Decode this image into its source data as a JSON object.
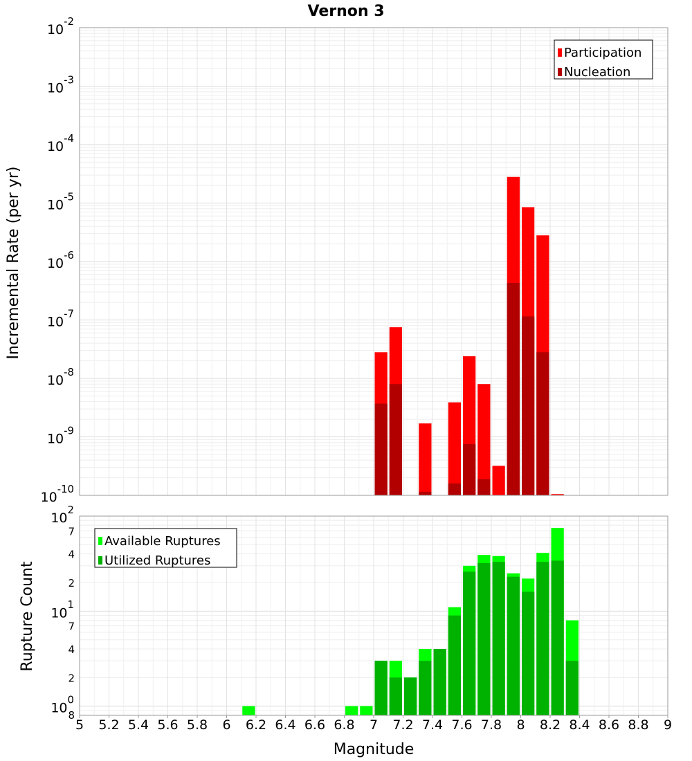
{
  "chart_data": [
    {
      "type": "bar",
      "title": "Vernon 3",
      "xlabel": "",
      "ylabel": "Incremental Rate (per yr)",
      "yscale": "log",
      "xlim": [
        5,
        9
      ],
      "ylim": [
        1e-10,
        0.01
      ],
      "y_tick_labels": [
        {
          "base": "10",
          "exp": "-10"
        },
        {
          "base": "10",
          "exp": "-9"
        },
        {
          "base": "10",
          "exp": "-8"
        },
        {
          "base": "10",
          "exp": "-7"
        },
        {
          "base": "10",
          "exp": "-6"
        },
        {
          "base": "10",
          "exp": "-5"
        },
        {
          "base": "10",
          "exp": "-4"
        },
        {
          "base": "10",
          "exp": "-3"
        },
        {
          "base": "10",
          "exp": "-2"
        }
      ],
      "legend_position": "top-right",
      "grid": true,
      "series": [
        {
          "name": "Participation",
          "color": "#ff0000",
          "points": [
            {
              "x": 7.05,
              "y": 2.8e-08
            },
            {
              "x": 7.15,
              "y": 7.5e-08
            },
            {
              "x": 7.35,
              "y": 1.7e-09
            },
            {
              "x": 7.55,
              "y": 3.9e-09
            },
            {
              "x": 7.65,
              "y": 2.4e-08
            },
            {
              "x": 7.75,
              "y": 8e-09
            },
            {
              "x": 7.85,
              "y": 3.2e-10
            },
            {
              "x": 7.95,
              "y": 2.8e-05
            },
            {
              "x": 8.05,
              "y": 8.5e-06
            },
            {
              "x": 8.15,
              "y": 2.8e-06
            },
            {
              "x": 8.25,
              "y": 1.05e-10
            }
          ]
        },
        {
          "name": "Nucleation",
          "color": "#b20000",
          "points": [
            {
              "x": 7.05,
              "y": 3.7e-09
            },
            {
              "x": 7.15,
              "y": 8e-09
            },
            {
              "x": 7.35,
              "y": 1.15e-10
            },
            {
              "x": 7.55,
              "y": 1.6e-10
            },
            {
              "x": 7.65,
              "y": 7.5e-10
            },
            {
              "x": 7.75,
              "y": 1.9e-10
            },
            {
              "x": 7.95,
              "y": 4.3e-07
            },
            {
              "x": 8.05,
              "y": 1.15e-07
            },
            {
              "x": 8.15,
              "y": 2.8e-08
            }
          ]
        }
      ]
    },
    {
      "type": "bar",
      "title": "",
      "xlabel": "Magnitude",
      "ylabel": "Rupture Count",
      "yscale": "log",
      "xlim": [
        5,
        9
      ],
      "ylim": [
        0.8,
        100
      ],
      "x_ticks": [
        "5",
        "5.2",
        "5.4",
        "5.6",
        "5.8",
        "6",
        "6.2",
        "6.4",
        "6.6",
        "6.8",
        "7",
        "7.2",
        "7.4",
        "7.6",
        "7.8",
        "8",
        "8.2",
        "8.4",
        "8.6",
        "8.8",
        "9"
      ],
      "y_tick_labels": [
        {
          "base": "10",
          "exp": "0"
        },
        {
          "base": "10",
          "exp": "1"
        },
        {
          "base": "10",
          "exp": "2"
        }
      ],
      "y_minor_tick_labels": [
        "8",
        "2",
        "4",
        "7",
        "2",
        "4",
        "7"
      ],
      "legend_position": "top-left",
      "grid": true,
      "series": [
        {
          "name": "Available Ruptures",
          "color": "#00ff00",
          "points": [
            {
              "x": 6.15,
              "y": 1
            },
            {
              "x": 6.85,
              "y": 1
            },
            {
              "x": 6.95,
              "y": 1
            },
            {
              "x": 7.05,
              "y": 3
            },
            {
              "x": 7.15,
              "y": 3
            },
            {
              "x": 7.25,
              "y": 2
            },
            {
              "x": 7.35,
              "y": 4
            },
            {
              "x": 7.45,
              "y": 4
            },
            {
              "x": 7.55,
              "y": 11
            },
            {
              "x": 7.65,
              "y": 30
            },
            {
              "x": 7.75,
              "y": 39
            },
            {
              "x": 7.85,
              "y": 38
            },
            {
              "x": 7.95,
              "y": 25
            },
            {
              "x": 8.05,
              "y": 22
            },
            {
              "x": 8.15,
              "y": 41
            },
            {
              "x": 8.25,
              "y": 75
            },
            {
              "x": 8.35,
              "y": 8
            }
          ]
        },
        {
          "name": "Utilized Ruptures",
          "color": "#00b200",
          "points": [
            {
              "x": 7.05,
              "y": 3
            },
            {
              "x": 7.15,
              "y": 2
            },
            {
              "x": 7.25,
              "y": 2
            },
            {
              "x": 7.35,
              "y": 3
            },
            {
              "x": 7.45,
              "y": 4
            },
            {
              "x": 7.55,
              "y": 9
            },
            {
              "x": 7.65,
              "y": 26
            },
            {
              "x": 7.75,
              "y": 32
            },
            {
              "x": 7.85,
              "y": 33
            },
            {
              "x": 7.95,
              "y": 23
            },
            {
              "x": 8.05,
              "y": 16
            },
            {
              "x": 8.15,
              "y": 33
            },
            {
              "x": 8.25,
              "y": 34
            },
            {
              "x": 8.35,
              "y": 3
            }
          ]
        }
      ]
    }
  ]
}
